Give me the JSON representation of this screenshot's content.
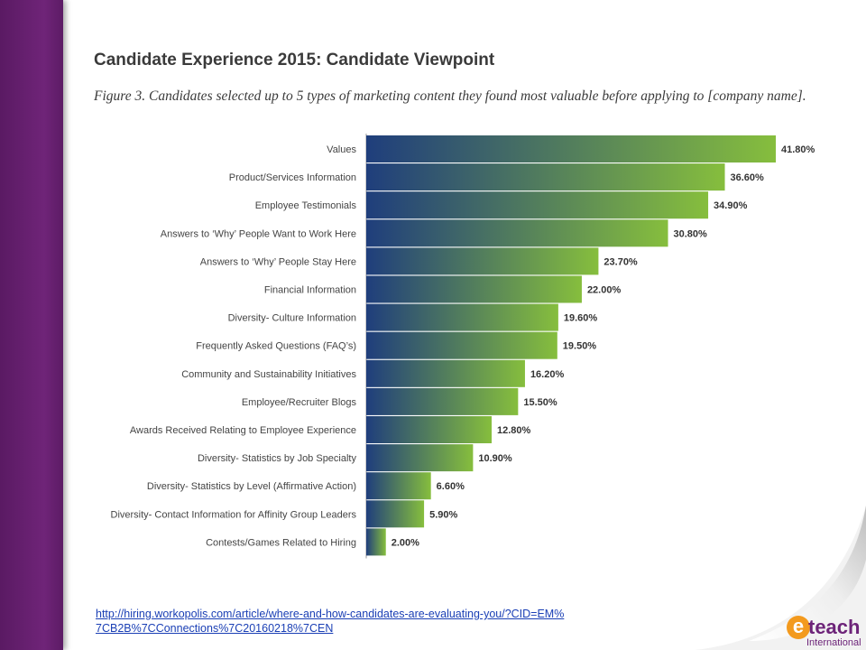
{
  "slide": {
    "title": "Candidate Experience 2015: Candidate Viewpoint",
    "caption": "Figure 3. Candidates selected up to 5 types of marketing content they found most valuable before applying to [company name].",
    "source_url": "http://hiring.workopolis.com/article/where-and-how-candidates-are-evaluating-you/?CID=EM%7CB2B%7CConnections%7C20160218%7CEN"
  },
  "logo": {
    "mark": "e",
    "name": "teach",
    "subtitle": "International",
    "accent": "#f39a1e",
    "brand": "#6d2479"
  },
  "colors": {
    "sidebar": "#6f2478",
    "bar_start": "#1f3e7c",
    "bar_end": "#86be3d"
  },
  "chart_data": {
    "type": "bar",
    "orientation": "horizontal",
    "title": "",
    "xlabel": "",
    "ylabel": "",
    "xlim": [
      0,
      42
    ],
    "grid": false,
    "categories": [
      "Values",
      "Product/Services Information",
      "Employee Testimonials",
      "Answers to ‘Why’ People Want to Work Here",
      "Answers to ‘Why’ People Stay Here",
      "Financial Information",
      "Diversity- Culture Information",
      "Frequently Asked Questions (FAQ’s)",
      "Community and Sustainability Initiatives",
      "Employee/Recruiter Blogs",
      "Awards Received Relating to Employee Experience",
      "Diversity- Statistics by Job Specialty",
      "Diversity- Statistics by Level (Affirmative Action)",
      "Diversity- Contact Information for Affinity Group Leaders",
      "Contests/Games Related to Hiring"
    ],
    "values": [
      41.8,
      36.6,
      34.9,
      30.8,
      23.7,
      22.0,
      19.6,
      19.5,
      16.2,
      15.5,
      12.8,
      10.9,
      6.6,
      5.9,
      2.0
    ],
    "value_labels": [
      "41.80%",
      "36.60%",
      "34.90%",
      "30.80%",
      "23.70%",
      "22.00%",
      "19.60%",
      "19.50%",
      "16.20%",
      "15.50%",
      "12.80%",
      "10.90%",
      "6.60%",
      "5.90%",
      "2.00%"
    ]
  }
}
